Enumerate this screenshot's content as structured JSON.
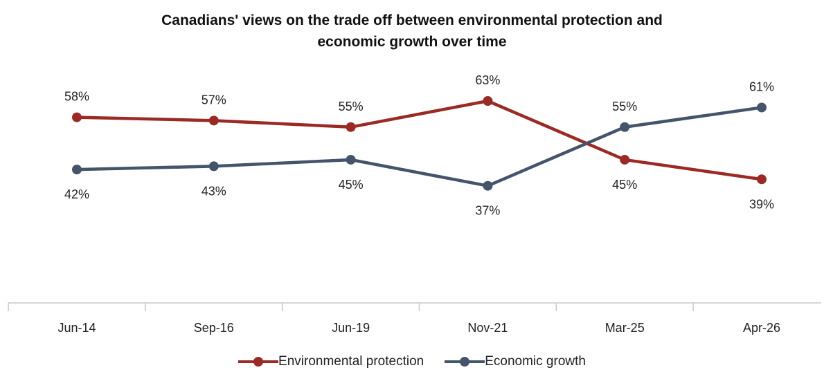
{
  "chart_data": {
    "type": "line",
    "title": "Canadians' views on the trade off between environmental protection and economic growth over time",
    "title_lines": [
      "Canadians' views on the trade off between environmental protection and",
      "economic growth over time"
    ],
    "categories": [
      "Jun-14",
      "Sep-16",
      "Jun-19",
      "Nov-21",
      "Mar-25",
      "Apr-26"
    ],
    "series": [
      {
        "name": "Environmental protection",
        "values": [
          58,
          57,
          55,
          63,
          45,
          39
        ],
        "labels": [
          "58%",
          "57%",
          "55%",
          "63%",
          "45%",
          "39%"
        ],
        "color": "#9b2a25"
      },
      {
        "name": "Economic growth",
        "values": [
          42,
          43,
          45,
          37,
          55,
          61
        ],
        "labels": [
          "42%",
          "43%",
          "45%",
          "37%",
          "55%",
          "61%"
        ],
        "color": "#44546a"
      }
    ],
    "ylim": [
      0,
      90
    ],
    "grid": false,
    "legend": "bottom"
  }
}
